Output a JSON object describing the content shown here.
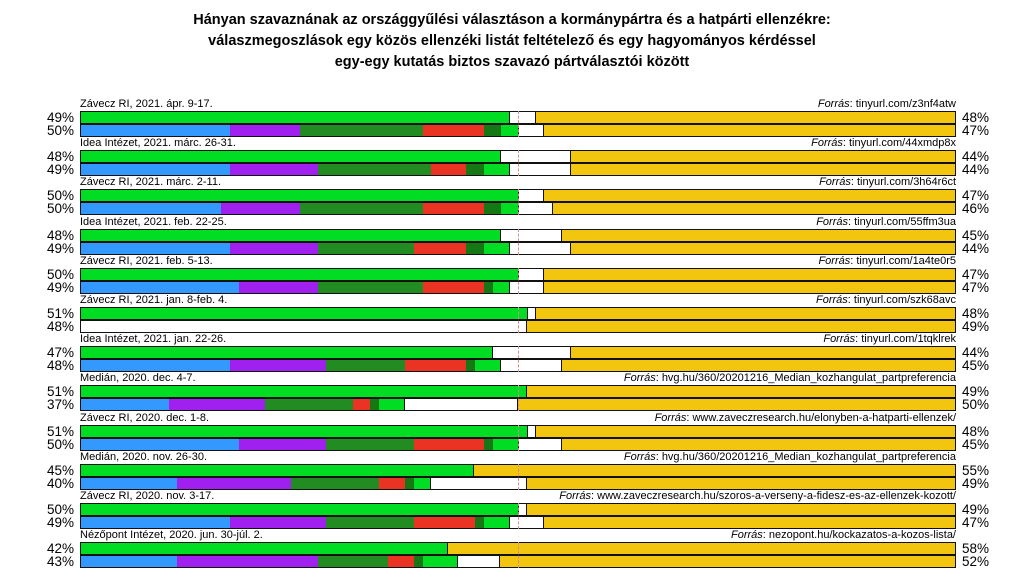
{
  "title": {
    "line1": "Hányan szavaznának az országgyűlési választáson a kormánypártra és a hatpárti ellenzékre:",
    "line2": "válaszmegoszlások egy közös ellenzéki listát feltételező és egy hagyományos kérdéssel",
    "line3": "egy-egy kutatás biztos szavazó pártválasztói között"
  },
  "chart_data": {
    "type": "bar",
    "orientation": "horizontal-stacked",
    "axis_range": [
      0,
      100
    ],
    "midline_pct": 50,
    "grid": false,
    "bars_per_poll": [
      "közös ellenzéki lista kérdés",
      "hagyományos kérdés"
    ],
    "source_prefix": "Forrás",
    "colors": {
      "opposition_list_green": "#00dd22",
      "fidesz_yellow": "#f2c50f",
      "bar_border": "#111111",
      "midline_dashed": "#d98c8c",
      "background": "#ffffff",
      "party_segment_colors": [
        "#3399ff",
        "#a020f0",
        "#228b22",
        "#ea3323",
        "#157815",
        "#00dd22"
      ]
    },
    "polls": [
      {
        "label": "Závecz RI, 2021. ápr. 9-17.",
        "source": "tinyurl.com/z3nf4atw",
        "list_opposition_pct": 49,
        "list_fidesz_pct": 48,
        "trad_opposition_pct": 50,
        "trad_fidesz_pct": 47,
        "trad_party_segments_pct": [
          17,
          8,
          14,
          7,
          2,
          2
        ]
      },
      {
        "label": "Idea Intézet, 2021. márc. 26-31.",
        "source": "tinyurl.com/44xmdp8x",
        "list_opposition_pct": 48,
        "list_fidesz_pct": 44,
        "trad_opposition_pct": 49,
        "trad_fidesz_pct": 44,
        "trad_party_segments_pct": [
          17,
          10,
          13,
          4,
          2,
          3
        ]
      },
      {
        "label": "Závecz RI, 2021. márc. 2-11.",
        "source": "tinyurl.com/3h64r6ct",
        "list_opposition_pct": 50,
        "list_fidesz_pct": 47,
        "trad_opposition_pct": 50,
        "trad_fidesz_pct": 46,
        "trad_party_segments_pct": [
          16,
          9,
          14,
          7,
          2,
          2
        ]
      },
      {
        "label": "Idea Intézet, 2021. feb. 22-25.",
        "source": "tinyurl.com/55ffm3ua",
        "list_opposition_pct": 48,
        "list_fidesz_pct": 45,
        "trad_opposition_pct": 49,
        "trad_fidesz_pct": 44,
        "trad_party_segments_pct": [
          17,
          10,
          11,
          6,
          2,
          3
        ]
      },
      {
        "label": "Závecz RI, 2021. feb. 5-13.",
        "source": "tinyurl.com/1a4te0r5",
        "list_opposition_pct": 50,
        "list_fidesz_pct": 47,
        "trad_opposition_pct": 49,
        "trad_fidesz_pct": 47,
        "trad_party_segments_pct": [
          18,
          9,
          12,
          7,
          1,
          2
        ]
      },
      {
        "label": "Závecz RI, 2021. jan. 8-feb. 4.",
        "source": "tinyurl.com/szk68avc",
        "list_opposition_pct": 51,
        "list_fidesz_pct": 48,
        "trad_opposition_pct": 48,
        "trad_fidesz_pct": 49,
        "trad_party_segments_pct": []
      },
      {
        "label": "Idea Intézet, 2021. jan. 22-26.",
        "source": "tinyurl.com/1tqklrek",
        "list_opposition_pct": 47,
        "list_fidesz_pct": 44,
        "trad_opposition_pct": 48,
        "trad_fidesz_pct": 45,
        "trad_party_segments_pct": [
          17,
          11,
          9,
          7,
          1,
          3
        ]
      },
      {
        "label": "Medián, 2020. dec. 4-7.",
        "source": "hvg.hu/360/20201216_Median_kozhangulat_partpreferencia",
        "list_opposition_pct": 51,
        "list_fidesz_pct": 49,
        "trad_opposition_pct": 37,
        "trad_fidesz_pct": 50,
        "trad_party_segments_pct": [
          10,
          11,
          10,
          2,
          1,
          3
        ]
      },
      {
        "label": "Závecz RI, 2020. dec. 1-8.",
        "source": "www.zaveczresearch.hu/elonyben-a-hatparti-ellenzek/",
        "list_opposition_pct": 51,
        "list_fidesz_pct": 48,
        "trad_opposition_pct": 50,
        "trad_fidesz_pct": 45,
        "trad_party_segments_pct": [
          18,
          10,
          10,
          8,
          1,
          3
        ]
      },
      {
        "label": "Medián, 2020. nov. 26-30.",
        "source": "hvg.hu/360/20201216_Median_kozhangulat_partpreferencia",
        "list_opposition_pct": 45,
        "list_fidesz_pct": 55,
        "trad_opposition_pct": 40,
        "trad_fidesz_pct": 49,
        "trad_party_segments_pct": [
          11,
          13,
          10,
          3,
          1,
          2
        ]
      },
      {
        "label": "Závecz RI, 2020. nov. 3-17.",
        "source": "www.zaveczresearch.hu/szoros-a-verseny-a-fidesz-es-az-ellenzek-kozott/",
        "list_opposition_pct": 50,
        "list_fidesz_pct": 49,
        "trad_opposition_pct": 49,
        "trad_fidesz_pct": 47,
        "trad_party_segments_pct": [
          17,
          11,
          10,
          7,
          1,
          3
        ]
      },
      {
        "label": "Nézőpont Intézet, 2020. jun. 30-júl. 2.",
        "source": "nezopont.hu/kockazatos-a-kozos-lista/",
        "list_opposition_pct": 42,
        "list_fidesz_pct": 58,
        "trad_opposition_pct": 43,
        "trad_fidesz_pct": 52,
        "trad_party_segments_pct": [
          11,
          16,
          8,
          3,
          1,
          4
        ]
      }
    ]
  }
}
